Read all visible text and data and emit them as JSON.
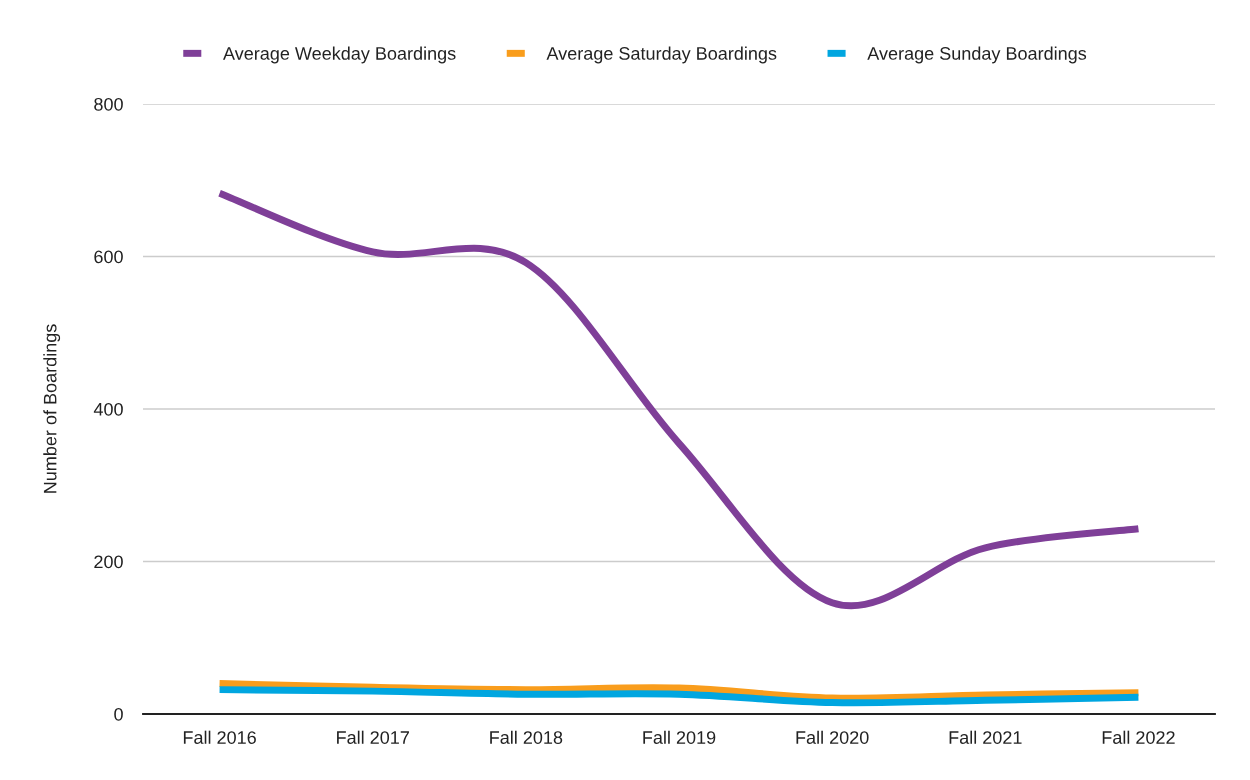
{
  "chart_data": {
    "type": "line",
    "ylabel": "Number of Boardings",
    "categories": [
      "Fall 2016",
      "Fall 2017",
      "Fall 2018",
      "Fall 2019",
      "Fall 2020",
      "Fall 2021",
      "Fall 2022"
    ],
    "series": [
      {
        "name": "Average Weekday Boardings",
        "color": "#7f3f98",
        "values": [
          683,
          606,
          592,
          355,
          146,
          218,
          243
        ]
      },
      {
        "name": "Average Saturday Boardings",
        "color": "#f99d1c",
        "values": [
          40,
          35,
          32,
          34,
          21,
          25,
          28
        ]
      },
      {
        "name": "Average Sunday Boardings",
        "color": "#00a6e0",
        "values": [
          32,
          30,
          26,
          26,
          15,
          18,
          22
        ]
      }
    ],
    "ylim": [
      0,
      800
    ],
    "yticks": [
      0,
      200,
      400,
      600,
      800
    ],
    "grid": "y",
    "legend": "top",
    "line_style": "solid"
  }
}
